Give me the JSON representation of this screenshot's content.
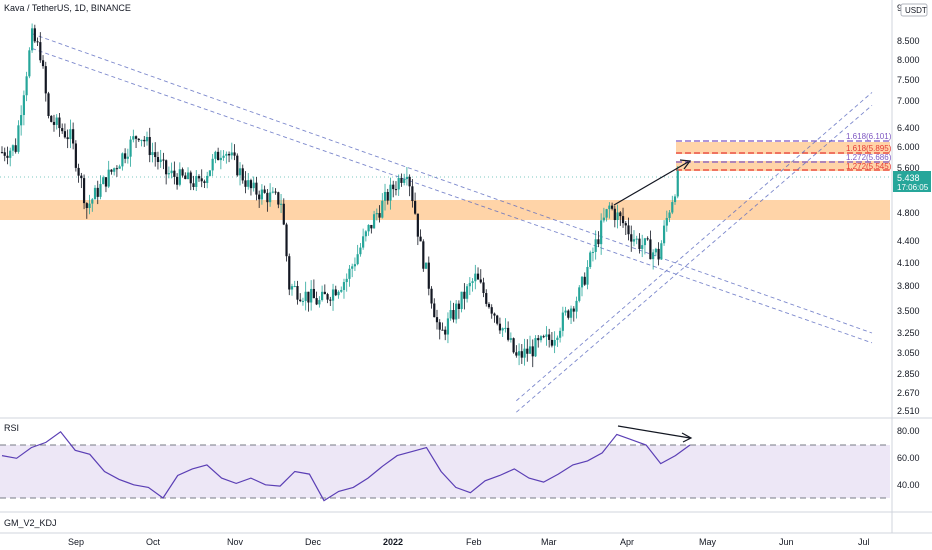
{
  "header": {
    "title": "Kava / TetherUS, 1D, BINANCE",
    "currency": "USDT",
    "top_tick": "9"
  },
  "price_axis": {
    "ticks": [
      "8.500",
      "8.000",
      "7.500",
      "7.000",
      "6.400",
      "6.000",
      "5.600",
      "4.800",
      "4.400",
      "4.100",
      "3.800",
      "3.500",
      "3.250",
      "3.050",
      "2.850",
      "2.670",
      "2.510"
    ],
    "last_price": "5.438",
    "countdown": "17:06:05"
  },
  "time_axis": {
    "labels": [
      "Sep",
      "Oct",
      "Nov",
      "Dec",
      "2022",
      "Feb",
      "Mar",
      "Apr",
      "May",
      "Jun",
      "Jul"
    ]
  },
  "fib_levels": [
    {
      "label": "1.618(6.101)",
      "color": "#7e57c2"
    },
    {
      "label": "1.618(5.895)",
      "color": "#e53935"
    },
    {
      "label": "1.272(5.686)",
      "color": "#7e57c2"
    },
    {
      "label": "1.272(5.545)",
      "color": "#e53935"
    }
  ],
  "rsi": {
    "label": "RSI",
    "ticks": [
      "80.00",
      "60.00",
      "40.00"
    ]
  },
  "indicator2": {
    "label": "GM_V2_KDJ"
  },
  "colors": {
    "up": "#26a69a",
    "down": "#131722",
    "zone": "#ffcc99",
    "rsi_line": "#5b3fb5",
    "rsi_band": "#ede7f6",
    "last_price_bg": "#26a69a"
  },
  "chart_data": {
    "type": "candlestick",
    "symbol": "Kava / TetherUS",
    "interval": "1D",
    "exchange": "BINANCE",
    "price_scale": "log",
    "ylim": [
      2.51,
      9.0
    ],
    "support_resistance_zone": [
      4.8,
      5.0
    ],
    "fib_levels": [
      6.101,
      5.895,
      5.686,
      5.545
    ],
    "last_price": 5.438,
    "close_series_approx": [
      {
        "date": "2021-08-21",
        "close": 5.9
      },
      {
        "date": "2021-08-26",
        "close": 6.0
      },
      {
        "date": "2021-09-01",
        "close": 8.6
      },
      {
        "date": "2021-09-04",
        "close": 8.2
      },
      {
        "date": "2021-09-07",
        "close": 6.6
      },
      {
        "date": "2021-09-15",
        "close": 6.2
      },
      {
        "date": "2021-09-21",
        "close": 4.9
      },
      {
        "date": "2021-10-01",
        "close": 5.6
      },
      {
        "date": "2021-10-10",
        "close": 6.3
      },
      {
        "date": "2021-10-20",
        "close": 5.5
      },
      {
        "date": "2021-11-01",
        "close": 5.3
      },
      {
        "date": "2021-11-10",
        "close": 6.0
      },
      {
        "date": "2021-11-20",
        "close": 5.2
      },
      {
        "date": "2021-12-01",
        "close": 5.0
      },
      {
        "date": "2021-12-04",
        "close": 3.8
      },
      {
        "date": "2021-12-15",
        "close": 3.6
      },
      {
        "date": "2021-12-25",
        "close": 3.9
      },
      {
        "date": "2022-01-05",
        "close": 4.8
      },
      {
        "date": "2022-01-16",
        "close": 5.6
      },
      {
        "date": "2022-01-21",
        "close": 4.3
      },
      {
        "date": "2022-01-28",
        "close": 3.2
      },
      {
        "date": "2022-02-10",
        "close": 3.9
      },
      {
        "date": "2022-02-20",
        "close": 3.3
      },
      {
        "date": "2022-02-25",
        "close": 3.0
      },
      {
        "date": "2022-03-10",
        "close": 3.2
      },
      {
        "date": "2022-03-20",
        "close": 3.7
      },
      {
        "date": "2022-03-31",
        "close": 4.9
      },
      {
        "date": "2022-04-10",
        "close": 4.4
      },
      {
        "date": "2022-04-18",
        "close": 4.2
      },
      {
        "date": "2022-04-25",
        "close": 5.4
      }
    ],
    "trendlines": [
      {
        "from": {
          "date": "2021-09-01",
          "price": 8.7
        },
        "to": {
          "date": "2022-07-05",
          "price": 3.25
        }
      },
      {
        "from": {
          "date": "2021-09-01",
          "price": 8.3
        },
        "to": {
          "date": "2022-07-05",
          "price": 3.15
        }
      },
      {
        "from": {
          "date": "2022-02-25",
          "price": 2.6
        },
        "to": {
          "date": "2022-07-05",
          "price": 7.2
        }
      },
      {
        "from": {
          "date": "2022-02-25",
          "price": 2.5
        },
        "to": {
          "date": "2022-07-05",
          "price": 6.9
        }
      }
    ],
    "rsi": {
      "upper_band": 70,
      "lower_band": 30,
      "values_approx": [
        62,
        60,
        68,
        72,
        80,
        66,
        63,
        50,
        44,
        40,
        38,
        30,
        47,
        52,
        55,
        45,
        41,
        45,
        40,
        39,
        50,
        48,
        28,
        35,
        38,
        45,
        54,
        62,
        65,
        68,
        50,
        38,
        34,
        43,
        47,
        52,
        45,
        42,
        48,
        55,
        58,
        64,
        78,
        74,
        70,
        56,
        62,
        70
      ]
    }
  }
}
